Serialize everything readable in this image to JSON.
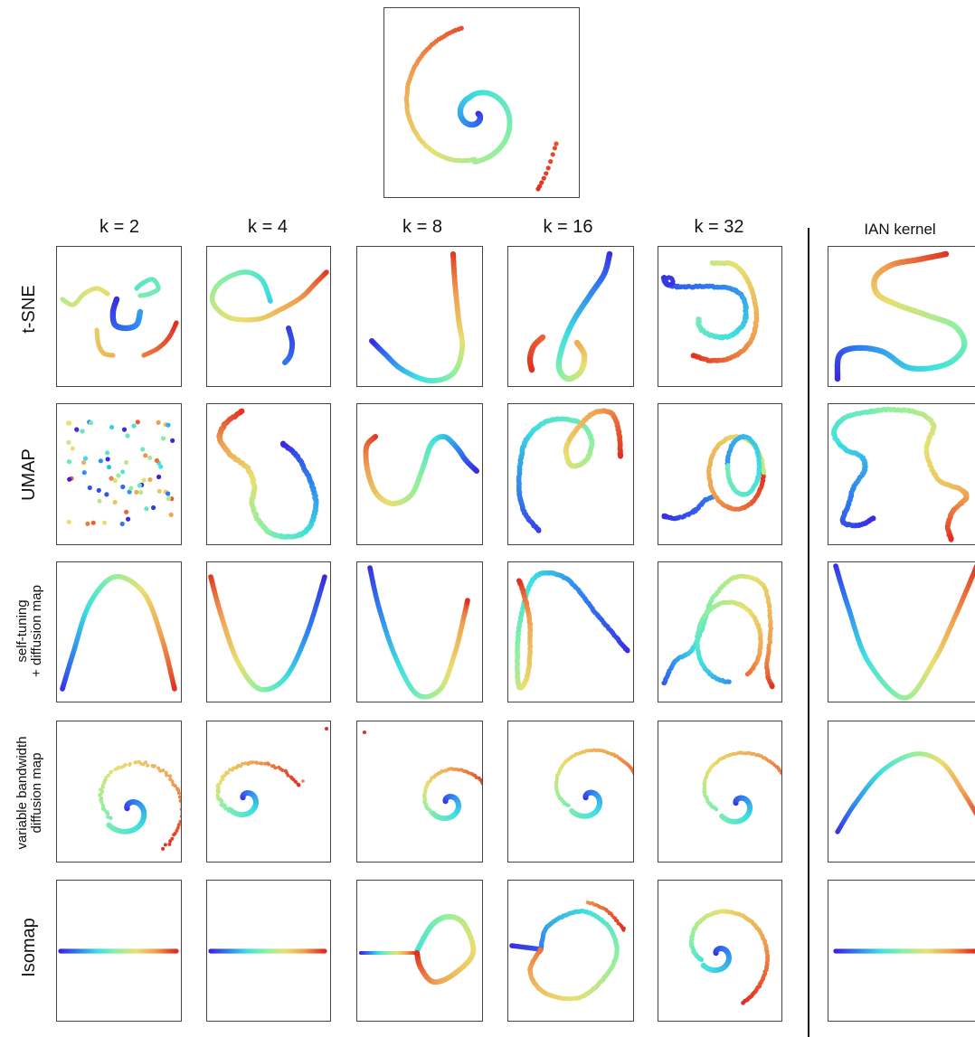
{
  "columns": [
    {
      "key": "k2",
      "label": "k = 2"
    },
    {
      "key": "k4",
      "label": "k = 4"
    },
    {
      "key": "k8",
      "label": "k = 8"
    },
    {
      "key": "k16",
      "label": "k = 16"
    },
    {
      "key": "k32",
      "label": "k = 32"
    },
    {
      "key": "ian",
      "label": "IAN kernel"
    }
  ],
  "rows": [
    {
      "key": "tsne",
      "label": "t-SNE"
    },
    {
      "key": "umap",
      "label": "UMAP"
    },
    {
      "key": "stdm",
      "label_line1": "self-tuning",
      "label_line2": "+ diffusion map"
    },
    {
      "key": "vbdm",
      "label_line1": "variable bandwidth",
      "label_line2": "diffusion map"
    },
    {
      "key": "isomap",
      "label": "Isomap"
    }
  ],
  "colormap": [
    "#3b1ee0",
    "#2f7ff0",
    "#3ee0e0",
    "#8ef0a0",
    "#e8e070",
    "#f0a050",
    "#e03020"
  ]
}
